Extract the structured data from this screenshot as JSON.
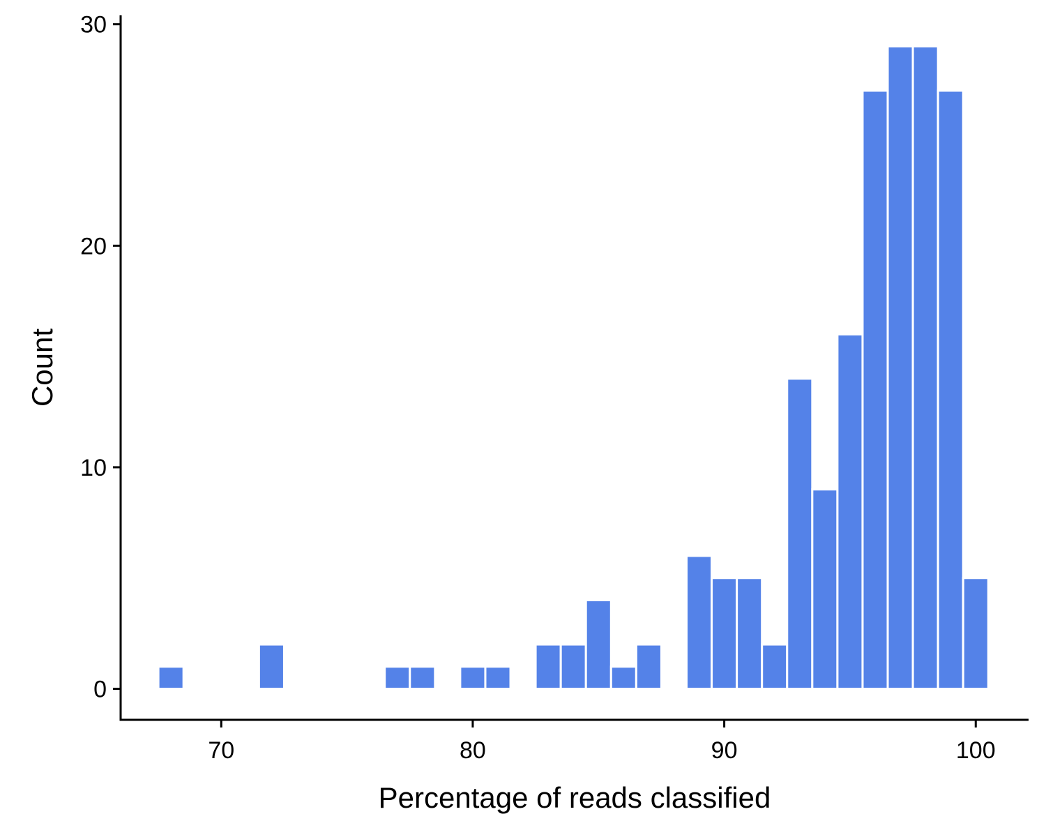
{
  "chart_data": {
    "type": "bar",
    "xlabel": "Percentage of reads classified",
    "ylabel": "Count",
    "xlim": [
      66,
      102.1
    ],
    "ylim": [
      -1.4,
      30.4
    ],
    "x_ticks": [
      70,
      80,
      90,
      100
    ],
    "y_ticks": [
      0,
      10,
      20,
      30
    ],
    "bin_width": 1,
    "bar_color": "#5482e8",
    "grid": false,
    "bars": [
      {
        "x": 68,
        "count": 1
      },
      {
        "x": 72,
        "count": 2
      },
      {
        "x": 77,
        "count": 1
      },
      {
        "x": 78,
        "count": 1
      },
      {
        "x": 80,
        "count": 1
      },
      {
        "x": 81,
        "count": 1
      },
      {
        "x": 83,
        "count": 2
      },
      {
        "x": 84,
        "count": 2
      },
      {
        "x": 85,
        "count": 4
      },
      {
        "x": 86,
        "count": 1
      },
      {
        "x": 87,
        "count": 2
      },
      {
        "x": 89,
        "count": 6
      },
      {
        "x": 90,
        "count": 5
      },
      {
        "x": 91,
        "count": 5
      },
      {
        "x": 92,
        "count": 2
      },
      {
        "x": 93,
        "count": 14
      },
      {
        "x": 94,
        "count": 9
      },
      {
        "x": 95,
        "count": 16
      },
      {
        "x": 96,
        "count": 27
      },
      {
        "x": 97,
        "count": 29
      },
      {
        "x": 98,
        "count": 29
      },
      {
        "x": 99,
        "count": 27
      },
      {
        "x": 100,
        "count": 5
      }
    ]
  }
}
